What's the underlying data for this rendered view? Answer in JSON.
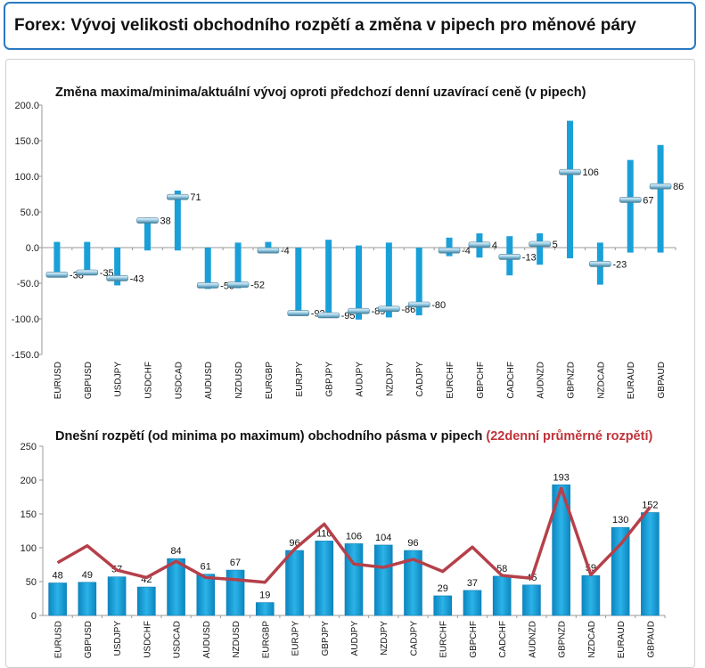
{
  "header": {
    "title": "Forex: Vývoj velikosti obchodního rozpětí a změna v pipech pro měnové páry"
  },
  "colors": {
    "bar": "#1aa0d8",
    "bar_dark": "#0d7fb5",
    "line": "#b5404a",
    "title_red": "#c0343a",
    "border": "#2a79c2"
  },
  "chart_data": [
    {
      "type": "range",
      "title": "Změna maxima/minima/aktuální vývoj oproti předchozí denní uzavírací ceně (v pipech)",
      "ylim": [
        -150,
        200
      ],
      "yticks": [
        "200.0",
        "150.0",
        "100.0",
        "50.0",
        "0.0",
        "-50.0",
        "-100.0",
        "-150.0"
      ],
      "categories": [
        "EURUSD",
        "GBPUSD",
        "USDJPY",
        "USDCHF",
        "USDCAD",
        "AUDUSD",
        "NZDUSD",
        "EURGBP",
        "EURJPY",
        "GBPJPY",
        "AUDJPY",
        "NZDJPY",
        "CADJPY",
        "EURCHF",
        "GBPCHF",
        "CADCHF",
        "AUDNZD",
        "GBPNZD",
        "NZDCAD",
        "EURAUD",
        "GBPAUD"
      ],
      "high": [
        8,
        8,
        0,
        42,
        80,
        0,
        7,
        8,
        0,
        11,
        3,
        7,
        0,
        14,
        20,
        16,
        20,
        178,
        7,
        123,
        144
      ],
      "low": [
        -38,
        -35,
        -53,
        -4,
        -4,
        -58,
        -57,
        -8,
        -95,
        -98,
        -101,
        -98,
        -95,
        -12,
        -14,
        -39,
        -24,
        -15,
        -52,
        -7,
        -7
      ],
      "current": [
        -38,
        -35,
        -43,
        38,
        71,
        -53,
        -52,
        -4,
        -92,
        -95,
        -89,
        -86,
        -80,
        -4,
        4,
        -13,
        5,
        106,
        -23,
        67,
        86
      ],
      "labels": [
        "-38",
        "-35",
        "-43",
        "38",
        "71",
        "-53",
        "-52",
        "-4",
        "-92",
        "-95",
        "-89",
        "-86",
        "-80",
        "-4",
        "4",
        "-13",
        "5",
        "106",
        "-23",
        "67",
        "86"
      ]
    },
    {
      "type": "bar",
      "title": "Dnešní rozpětí (od minima po maximum) obchodního pásma v pipech",
      "title_highlight": "(22denní průměrné rozpětí)",
      "ylim": [
        0,
        250
      ],
      "yticks": [
        "250",
        "200",
        "150",
        "100",
        "50",
        "0"
      ],
      "categories": [
        "EURUSD",
        "GBPUSD",
        "USDJPY",
        "USDCHF",
        "USDCAD",
        "AUDUSD",
        "NZDUSD",
        "EURGBP",
        "EURJPY",
        "GBPJPY",
        "AUDJPY",
        "NZDJPY",
        "CADJPY",
        "EURCHF",
        "GBPCHF",
        "CADCHF",
        "AUDNZD",
        "GBPNZD",
        "NZDCAD",
        "EURAUD",
        "GBPAUD"
      ],
      "values": [
        48,
        49,
        57,
        42,
        84,
        61,
        67,
        19,
        96,
        110,
        106,
        104,
        96,
        29,
        37,
        58,
        45,
        193,
        59,
        130,
        152
      ],
      "labels": [
        "48",
        "49",
        "57",
        "42",
        "84",
        "61",
        "67",
        "19",
        "96",
        "110",
        "106",
        "104",
        "96",
        "29",
        "37",
        "58",
        "45",
        "193",
        "59",
        "130",
        "152"
      ],
      "avg22": [
        78,
        103,
        67,
        56,
        80,
        56,
        53,
        49,
        98,
        135,
        76,
        71,
        83,
        65,
        101,
        59,
        55,
        188,
        60,
        105,
        160
      ]
    }
  ]
}
